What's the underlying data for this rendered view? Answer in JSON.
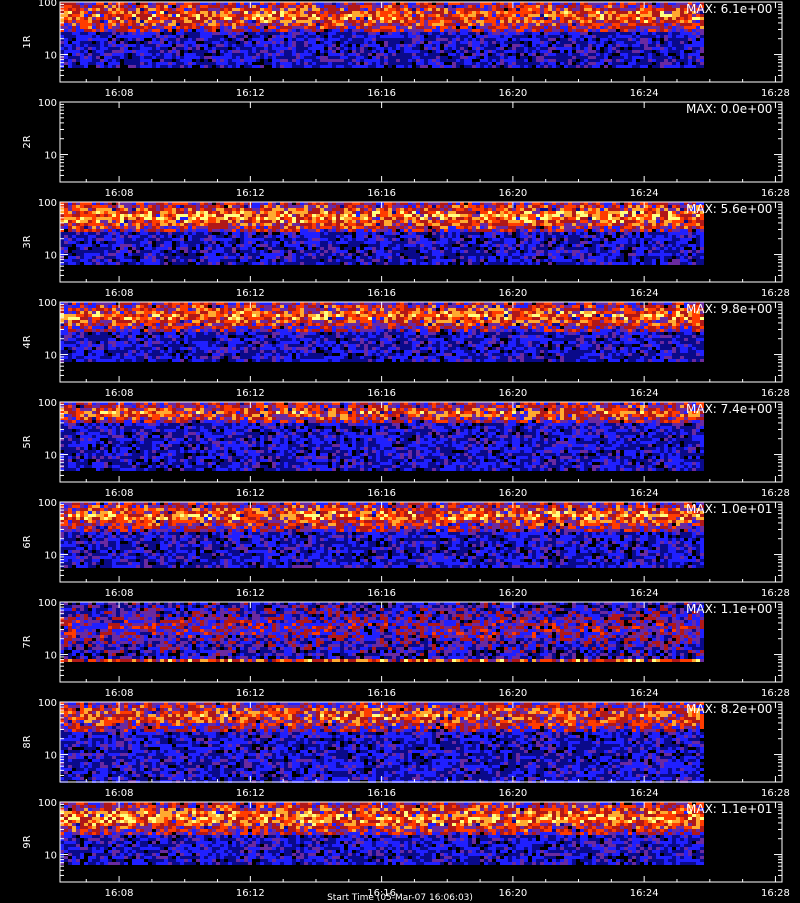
{
  "chart_data": {
    "type": "heatmap",
    "x_tick_labels": [
      "16:08",
      "16:12",
      "16:16",
      "16:20",
      "16:24",
      "16:28"
    ],
    "x_ticks_minutes": [
      8,
      12,
      16,
      20,
      24,
      28
    ],
    "x_range_minutes": [
      6.2,
      28.2
    ],
    "data_end_minutes": 25.8,
    "y_scale": "log",
    "y_tick_labels": [
      "10",
      "100"
    ],
    "y_range": [
      3,
      100
    ],
    "colormap": [
      "#000000",
      "#0a0a8a",
      "#2020ff",
      "#6a2aa0",
      "#b01818",
      "#ff3c00",
      "#ffaa30",
      "#ffff80"
    ],
    "axes_color": "#ffffff",
    "background": "#000000",
    "panels": [
      {
        "channel": "1R",
        "max_label": "MAX: 6.1e+00",
        "band_top": 100,
        "band_bottom": 28,
        "noise_top": 28,
        "noise_bottom": 6,
        "intensity": 0.9,
        "low_burst": 0
      },
      {
        "channel": "2R",
        "max_label": "MAX: 0.0e+00",
        "band_top": 0,
        "band_bottom": 0,
        "noise_top": 0,
        "noise_bottom": 0,
        "intensity": 0,
        "low_burst": 0
      },
      {
        "channel": "3R",
        "max_label": "MAX: 5.6e+00",
        "band_top": 100,
        "band_bottom": 28,
        "noise_top": 28,
        "noise_bottom": 7,
        "intensity": 1.0,
        "low_burst": 0
      },
      {
        "channel": "4R",
        "max_label": "MAX: 9.8e+00",
        "band_top": 100,
        "band_bottom": 30,
        "noise_top": 30,
        "noise_bottom": 8,
        "intensity": 0.9,
        "low_burst": 0
      },
      {
        "channel": "5R",
        "max_label": "MAX: 7.4e+00",
        "band_top": 100,
        "band_bottom": 40,
        "noise_top": 40,
        "noise_bottom": 5,
        "intensity": 0.8,
        "low_burst": 0
      },
      {
        "channel": "6R",
        "max_label": "MAX: 1.0e+01",
        "band_top": 100,
        "band_bottom": 30,
        "noise_top": 30,
        "noise_bottom": 6,
        "intensity": 0.9,
        "low_burst": 0
      },
      {
        "channel": "7R",
        "max_label": "MAX: 1.1e+00",
        "band_top": 100,
        "band_bottom": 9,
        "noise_top": 9,
        "noise_bottom": 8,
        "intensity": 0.6,
        "low_burst": 1
      },
      {
        "channel": "8R",
        "max_label": "MAX: 8.2e+00",
        "band_top": 100,
        "band_bottom": 30,
        "noise_top": 30,
        "noise_bottom": 3,
        "intensity": 0.8,
        "low_burst": 0
      },
      {
        "channel": "9R",
        "max_label": "MAX: 1.1e+01",
        "band_top": 100,
        "band_bottom": 25,
        "noise_top": 25,
        "noise_bottom": 7,
        "intensity": 1.0,
        "low_burst": 0
      }
    ],
    "x_axis_title": "Start Time (05-Mar-07 16:06:03)"
  }
}
